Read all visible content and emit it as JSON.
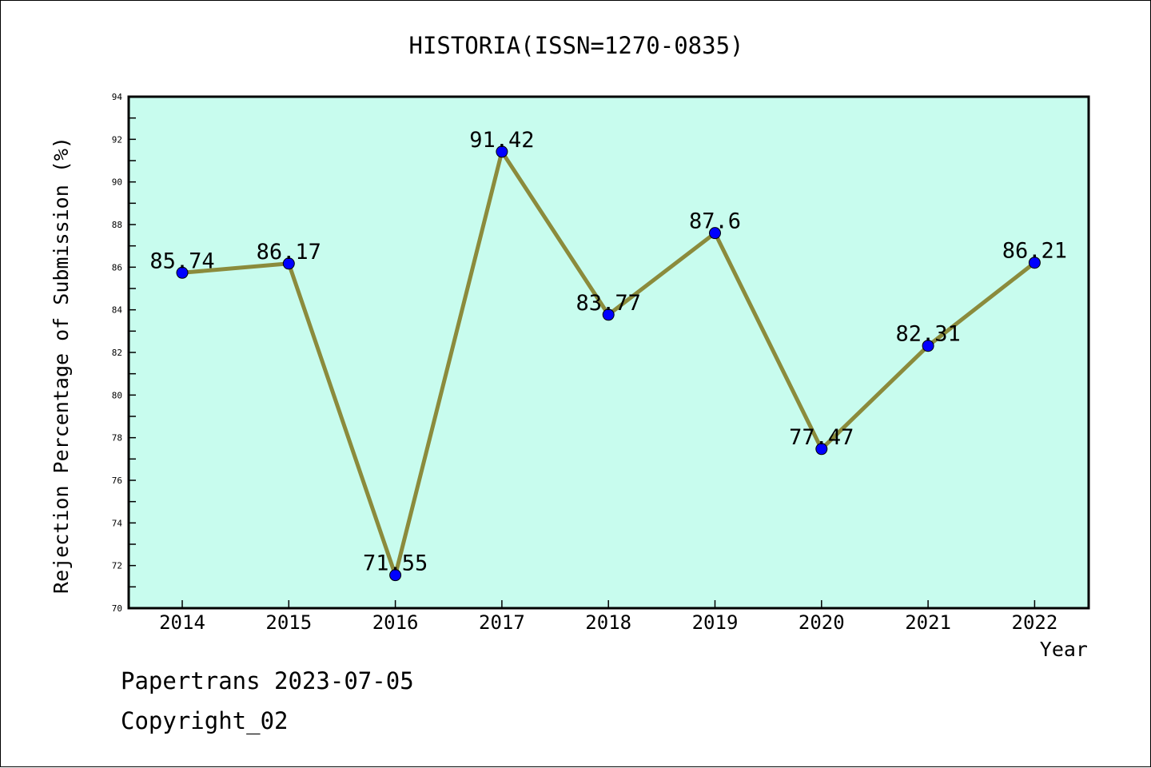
{
  "chart_data": {
    "type": "line",
    "title": "HISTORIA(ISSN=1270-0835)",
    "xlabel": "Year",
    "ylabel": "Rejection Percentage of Submission (%)",
    "categories": [
      "2014",
      "2015",
      "2016",
      "2017",
      "2018",
      "2019",
      "2020",
      "2021",
      "2022"
    ],
    "series": [
      {
        "values": [
          85.74,
          86.17,
          71.55,
          91.42,
          83.77,
          87.6,
          77.47,
          82.31,
          86.21
        ],
        "data_labels": [
          "85.74",
          "86.17",
          "71.55",
          "91.42",
          "83.77",
          "87.6",
          "77.47",
          "82.31",
          "86.21"
        ],
        "line_color": "#8b8b3c",
        "marker_color": "#0000ff"
      }
    ],
    "ylim": [
      70,
      94
    ],
    "yticks": [
      "70",
      "72",
      "74",
      "76",
      "78",
      "80",
      "82",
      "84",
      "86",
      "88",
      "90",
      "92",
      "94"
    ],
    "plot_background": "#c8fcee",
    "grid": false,
    "legend": "none"
  },
  "footer": {
    "line1": "Papertrans 2023-07-05",
    "line2": "Copyright_02"
  }
}
